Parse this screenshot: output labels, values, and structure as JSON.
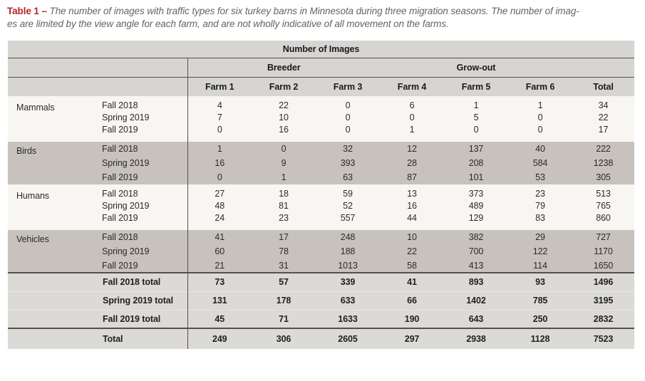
{
  "caption": {
    "label": "Table 1 –",
    "line1": "The number of images with traffic types for six turkey barns in Minnesota during three migration seasons. The number of imag-",
    "line2": "es are limited by the view angle for each farm, and are not wholly indicative of all movement on the farms."
  },
  "colors": {
    "accent_red": "#b22428",
    "band_header": "#d7d5d2",
    "band_light": "#f8f6f3",
    "band_shaded": "#c7c2bb",
    "band_totals": "#dcdad7",
    "rule_dark": "#54514a"
  },
  "table": {
    "title": "Number of Images",
    "group_headers": [
      "Breeder",
      "Grow-out"
    ],
    "column_headers": [
      "Farm 1",
      "Farm 2",
      "Farm 3",
      "Farm 4",
      "Farm 5",
      "Farm 6",
      "Total"
    ],
    "sections": [
      {
        "category": "Mammals",
        "shaded": false,
        "rows": [
          {
            "season": "Fall 2018",
            "values": [
              4,
              22,
              0,
              6,
              1,
              1,
              34
            ]
          },
          {
            "season": "Spring 2019",
            "values": [
              7,
              10,
              0,
              0,
              5,
              0,
              22
            ]
          },
          {
            "season": "Fall 2019",
            "values": [
              0,
              16,
              0,
              1,
              0,
              0,
              17
            ]
          }
        ]
      },
      {
        "category": "Birds",
        "shaded": true,
        "rows": [
          {
            "season": "Fall 2018",
            "values": [
              1,
              0,
              32,
              12,
              137,
              40,
              222
            ]
          },
          {
            "season": "Spring 2019",
            "values": [
              16,
              9,
              393,
              28,
              208,
              584,
              1238
            ]
          },
          {
            "season": "Fall 2019",
            "values": [
              0,
              1,
              63,
              87,
              101,
              53,
              305
            ]
          }
        ]
      },
      {
        "category": "Humans",
        "shaded": false,
        "rows": [
          {
            "season": "Fall 2018",
            "values": [
              27,
              18,
              59,
              13,
              373,
              23,
              513
            ]
          },
          {
            "season": "Spring 2019",
            "values": [
              48,
              81,
              52,
              16,
              489,
              79,
              765
            ]
          },
          {
            "season": "Fall 2019",
            "values": [
              24,
              23,
              557,
              44,
              129,
              83,
              860
            ]
          }
        ]
      },
      {
        "category": "Vehicles",
        "shaded": true,
        "rows": [
          {
            "season": "Fall 2018",
            "values": [
              41,
              17,
              248,
              10,
              382,
              29,
              727
            ]
          },
          {
            "season": "Spring 2019",
            "values": [
              60,
              78,
              188,
              22,
              700,
              122,
              1170
            ]
          },
          {
            "season": "Fall 2019",
            "values": [
              21,
              31,
              1013,
              58,
              413,
              114,
              1650
            ]
          }
        ]
      }
    ],
    "season_totals": [
      {
        "label": "Fall 2018 total",
        "values": [
          73,
          57,
          339,
          41,
          893,
          93,
          1496
        ]
      },
      {
        "label": "Spring 2019 total",
        "values": [
          131,
          178,
          633,
          66,
          1402,
          785,
          3195
        ]
      },
      {
        "label": "Fall 2019 total",
        "values": [
          45,
          71,
          1633,
          190,
          643,
          250,
          2832
        ]
      }
    ],
    "grand_total": {
      "label": "Total",
      "values": [
        249,
        306,
        2605,
        297,
        2938,
        1128,
        7523
      ]
    }
  }
}
